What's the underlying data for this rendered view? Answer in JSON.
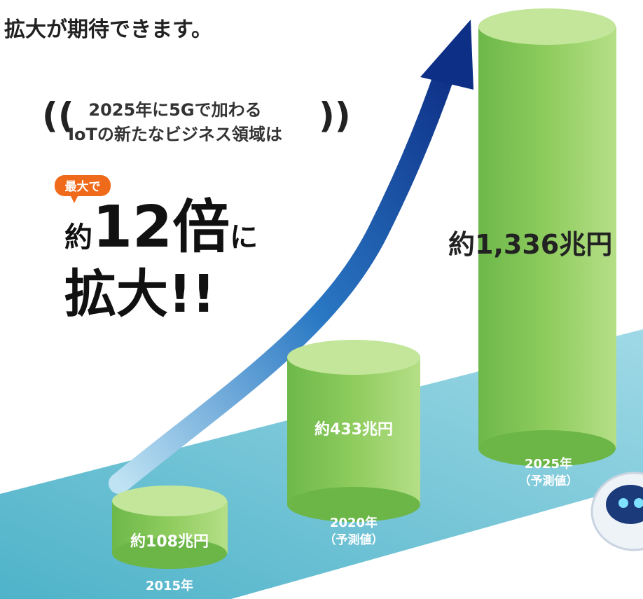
{
  "heading": "拡大が期待できます。",
  "callout": {
    "lines": [
      "2025年に5Gで加わる",
      "IoTの新たなビジネス領域は"
    ]
  },
  "badge": "最大で",
  "headline": {
    "prefix": "約",
    "number": "12倍",
    "suffix": "に",
    "line2": "拡大!!"
  },
  "bars": [
    {
      "label": "約108兆円",
      "year": "2015年"
    },
    {
      "label": "約433兆円",
      "year": "2020年",
      "note": "（予測値）"
    },
    {
      "label": "約1,336兆円",
      "year": "2025年",
      "note": "（予測値）"
    }
  ]
}
